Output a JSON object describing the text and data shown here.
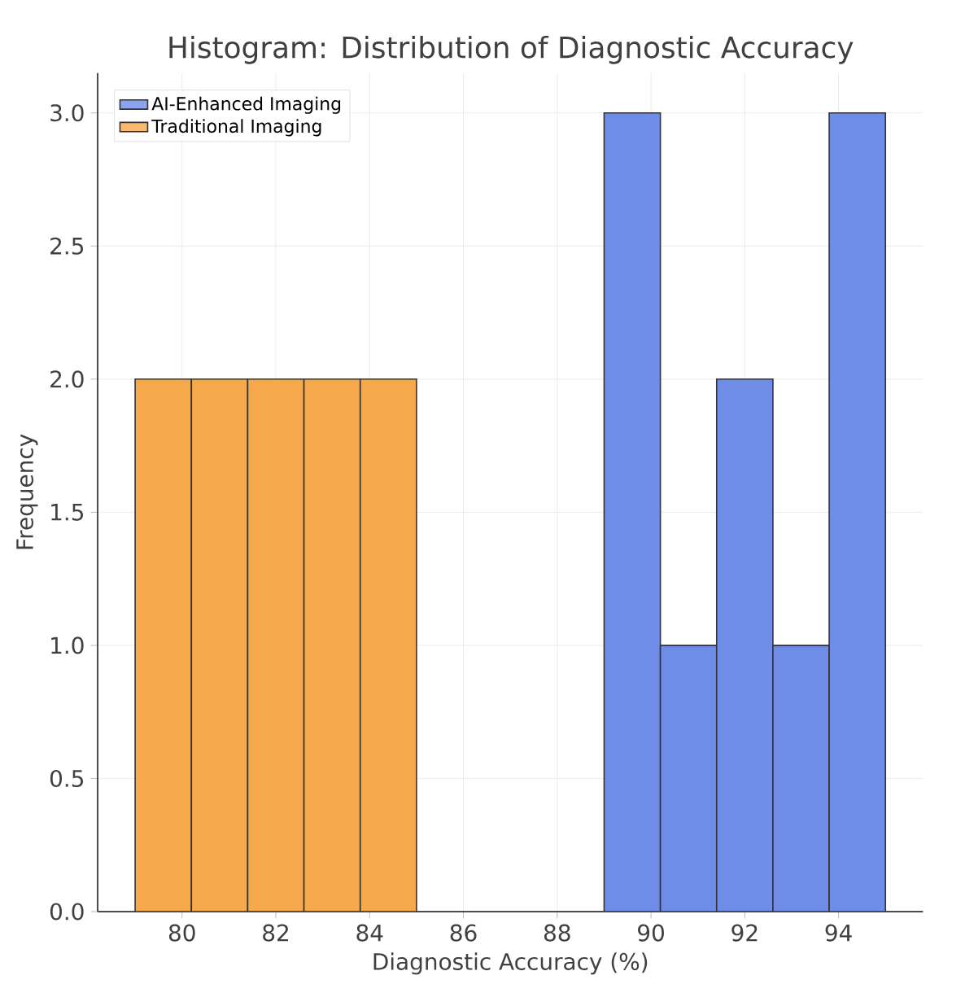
{
  "chart_data": {
    "type": "histogram",
    "title": "Histogram: Distribution of Diagnostic Accuracy",
    "xlabel": "Diagnostic Accuracy (%)",
    "ylabel": "Frequency",
    "bins": [
      79,
      80.2,
      81.4,
      82.6,
      83.8,
      85,
      89,
      90.2,
      91.4,
      92.6,
      93.8,
      95
    ],
    "series": [
      {
        "name": "AI-Enhanced Imaging",
        "color": "#6f8de6",
        "values": [
          0,
          0,
          0,
          0,
          0,
          0,
          3,
          1,
          2,
          1,
          3
        ]
      },
      {
        "name": "Traditional Imaging",
        "color": "#f6a94a",
        "values": [
          2,
          2,
          2,
          2,
          2,
          0,
          0,
          0,
          0,
          0,
          0
        ]
      }
    ],
    "xlim": [
      78.2,
      95.8
    ],
    "ylim": [
      0,
      3.15
    ],
    "xticks": [
      80,
      82,
      84,
      86,
      88,
      90,
      92,
      94
    ],
    "yticks": [
      {
        "value": 0,
        "label": "0.0"
      },
      {
        "value": 0.5,
        "label": "0.5"
      },
      {
        "value": 1,
        "label": "1.0"
      },
      {
        "value": 1.5,
        "label": "1.5"
      },
      {
        "value": 2,
        "label": "2.0"
      },
      {
        "value": 2.5,
        "label": "2.5"
      },
      {
        "value": 3,
        "label": "3.0"
      }
    ],
    "grid": true,
    "legend": "top left"
  }
}
